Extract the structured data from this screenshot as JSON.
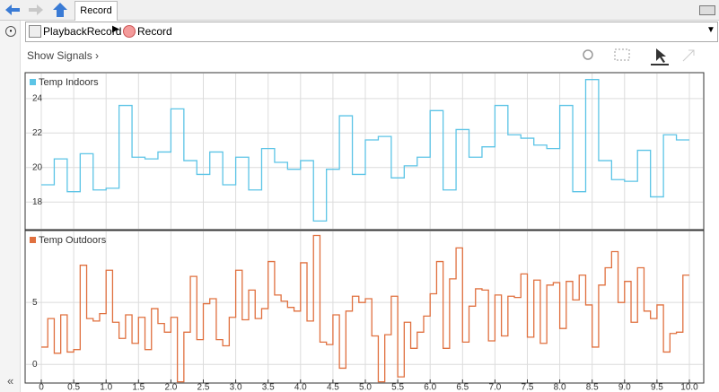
{
  "tab": "Record",
  "breadcrumb": [
    "PlaybackRecord",
    "Record"
  ],
  "show_signals": "Show Signals",
  "chart_data": [
    {
      "type": "line",
      "drawstyle": "steps-post",
      "grid": true,
      "xlim": [
        0,
        10
      ],
      "ylim": [
        16.4,
        25.5
      ],
      "yticks": [
        18,
        20,
        22,
        24
      ],
      "series": [
        {
          "name": "Temp Indoors",
          "color": "#5cc4e6",
          "values": [
            19,
            20.5,
            18.6,
            20.8,
            18.7,
            18.8,
            23.6,
            20.6,
            20.5,
            20.9,
            23.4,
            20.4,
            19.6,
            20.9,
            19.0,
            20.6,
            18.7,
            21.1,
            20.3,
            19.9,
            20.4,
            16.9,
            19.9,
            23.0,
            19.6,
            21.6,
            21.8,
            19.4,
            20.1,
            20.6,
            23.3,
            18.7,
            22.2,
            20.6,
            21.2,
            23.6,
            21.9,
            21.7,
            21.3,
            21.1,
            23.6,
            18.6,
            25.1,
            20.4,
            19.3,
            19.2,
            21.0,
            18.3,
            21.9,
            21.6
          ]
        }
      ]
    },
    {
      "type": "line",
      "drawstyle": "steps-post",
      "grid": true,
      "xlim": [
        0,
        10
      ],
      "ylim": [
        -1.5,
        10.8
      ],
      "yticks": [
        0,
        5
      ],
      "xticks": [
        0,
        0.5,
        {
          "value": 1,
          "label": "1.0"
        },
        1.5,
        {
          "value": 2,
          "label": "2.0"
        },
        2.5,
        {
          "value": 3,
          "label": "3.0"
        },
        3.5,
        {
          "value": 4,
          "label": "4.0"
        },
        4.5,
        {
          "value": 5,
          "label": "5.0"
        },
        5.5,
        {
          "value": 6,
          "label": "6.0"
        },
        6.5,
        {
          "value": 7,
          "label": "7.0"
        },
        7.5,
        {
          "value": 8,
          "label": "8.0"
        },
        8.5,
        {
          "value": 9,
          "label": "9.0"
        },
        9.5,
        {
          "value": 10,
          "label": "10.0"
        }
      ],
      "series": [
        {
          "name": "Temp Outdoors",
          "color": "#e0703f",
          "values": [
            1.4,
            3.7,
            0.9,
            4.0,
            1.0,
            1.2,
            8.0,
            3.7,
            3.5,
            4.1,
            7.6,
            3.4,
            2.1,
            4.0,
            1.7,
            3.8,
            1.2,
            4.5,
            3.3,
            2.6,
            3.8,
            -1.4,
            2.6,
            7.1,
            2.0,
            4.9,
            5.3,
            2.0,
            1.5,
            3.8,
            7.6,
            3.6,
            6.0,
            3.7,
            4.5,
            8.3,
            5.6,
            5.1,
            4.6,
            4.3,
            8.2,
            3.5,
            10.4,
            1.8,
            1.6,
            4.0,
            -0.3,
            4.3,
            5.5,
            5.0,
            5.3,
            2.3,
            -1.4,
            2.4,
            5.5,
            -1.0,
            3.4,
            1.3,
            2.6,
            3.9,
            5.7,
            8.3,
            1.3,
            6.9,
            9.4,
            1.8,
            4.7,
            6.1,
            6.0,
            1.9,
            5.6,
            2.3,
            5.5,
            5.4,
            7.3,
            2.2,
            6.8,
            1.7,
            6.4,
            6.6,
            2.9,
            6.7,
            5.2,
            7.2,
            4.8,
            1.4,
            6.4,
            7.8,
            9.1,
            5.0,
            6.7,
            3.4,
            7.8,
            4.3,
            3.7,
            4.8,
            1.0,
            2.5,
            2.6,
            7.2
          ]
        }
      ]
    }
  ]
}
